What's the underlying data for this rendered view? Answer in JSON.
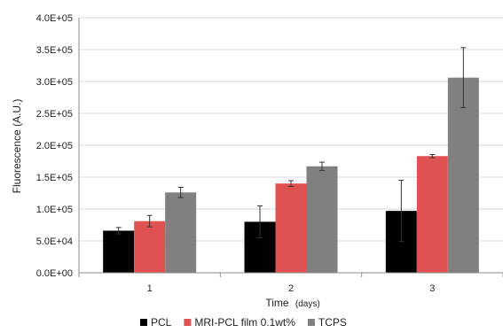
{
  "chart_data": {
    "type": "bar",
    "categories": [
      "1",
      "2",
      "3"
    ],
    "series": [
      {
        "name": "PCL",
        "color": "#000000",
        "values": [
          66000,
          80000,
          97000
        ],
        "errors": [
          5000,
          25000,
          48000
        ]
      },
      {
        "name": "MRI-PCL film 0.1wt%",
        "color": "#e05252",
        "values": [
          81000,
          140000,
          183000
        ],
        "errors": [
          9000,
          4500,
          2500
        ]
      },
      {
        "name": "TCPS",
        "color": "#808080",
        "values": [
          126000,
          167000,
          306000
        ],
        "errors": [
          8000,
          6500,
          47000
        ]
      }
    ],
    "ylim": [
      0,
      400000
    ],
    "yticks": [
      0,
      50000,
      100000,
      150000,
      200000,
      250000,
      300000,
      350000,
      400000
    ],
    "ytick_labels": [
      "0.0E+00",
      "5.0E+04",
      "1.0E+05",
      "1.5E+05",
      "2.0E+05",
      "2.5E+05",
      "3.0E+05",
      "3.5E+05",
      "4.0E+05"
    ],
    "ylabel": "Fluorescence (A.U.)",
    "xlabel": "Time",
    "xlabel_unit": "(days)",
    "grid": "horizontal",
    "legend_position": "bottom"
  }
}
